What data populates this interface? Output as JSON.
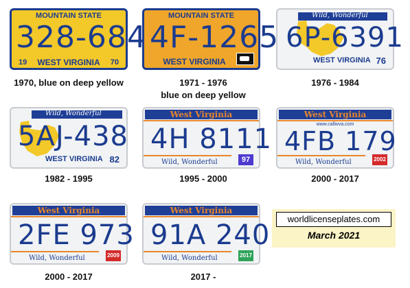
{
  "plates": [
    {
      "caption": "1970, blue on deep yellow",
      "top_text": "MOUNTAIN STATE",
      "number": "328-684",
      "year_left": "19",
      "state": "WEST VIRGINIA",
      "year_right": "70"
    },
    {
      "caption_line1": "1971 - 1976",
      "caption_line2": "blue on deep yellow",
      "top_text": "MOUNTAIN STATE",
      "number": "4F-1265",
      "state": "WEST VIRGINIA"
    },
    {
      "caption": "1976 - 1984",
      "top_text": "Wild, Wonderful",
      "number": "6P-6391",
      "state": "WEST VIRGINIA",
      "year": "76"
    },
    {
      "caption": "1982 - 1995",
      "top_text": "Wild, Wonderful",
      "number": "5AJ-438",
      "state": "WEST VIRGINIA",
      "year": "82"
    },
    {
      "caption": "1995 - 2000",
      "top_text": "West Virginia",
      "number": "4H 8111",
      "bottom_text": "Wild, Wonderful",
      "sticker": "97"
    },
    {
      "caption": "2000 - 2017",
      "top_text": "West Virginia",
      "url": "www.callwva.com",
      "number": "4FB 179",
      "bottom_text": "Wild, Wonderful",
      "sticker": "2002"
    },
    {
      "caption": "2000 - 2017",
      "top_text": "West Virginia",
      "number": "2FE 973",
      "bottom_text": "Wild, Wonderful",
      "sticker": "2009"
    },
    {
      "caption": "2017 -",
      "top_text": "West Virginia",
      "number": "91A 240",
      "bottom_text": "Wild, Wonderful",
      "sticker": "2017"
    }
  ],
  "credit": {
    "site": "worldlicenseplates.com",
    "date": "March 2021"
  },
  "colors": {
    "deep_yellow": "#f3c829",
    "orange_yellow": "#efa62a",
    "plate_blue": "#1b3b8f",
    "header_blue": "#1f3f97",
    "state_orange": "#e8862a",
    "white_plate": "#f1f3f4",
    "sticker_red": "#d42a2a",
    "sticker_green": "#2fa35a",
    "sticker_blue": "#4d3bd1",
    "credit_bg": "#fbf4c6"
  }
}
